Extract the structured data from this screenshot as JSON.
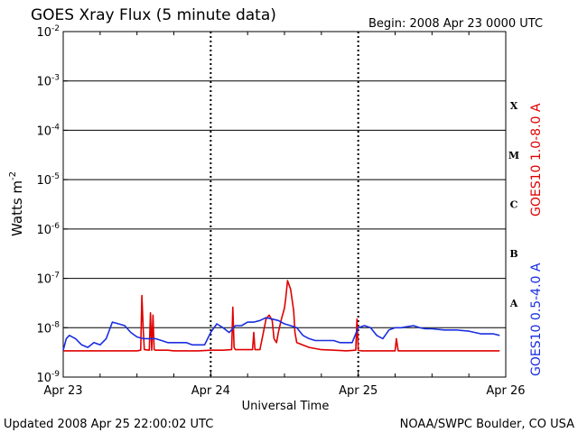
{
  "colors": {
    "long_channel": "#e00000",
    "short_channel": "#1a2ee0",
    "axis": "#000000",
    "background": "#ffffff"
  },
  "title": "GOES Xray Flux (5 minute data)",
  "begin_label": "Begin:  2008 Apr 23 0000 UTC",
  "footer_left": "Updated 2008 Apr 25 22:00:02 UTC",
  "footer_right": "NOAA/SWPC Boulder, CO USA",
  "chart_data": {
    "type": "line",
    "title": "GOES Xray Flux (5 minute data)",
    "xlabel": "Universal Time",
    "ylabel": "Watts m",
    "ylabel_superscript": "-2",
    "yscale": "log",
    "ylim": [
      1e-09,
      0.01
    ],
    "xlim": [
      0,
      72
    ],
    "x_unit": "hours since 2008 Apr 23 0000 UTC",
    "x_ticks": [
      {
        "x": 0,
        "label": "Apr 23"
      },
      {
        "x": 24,
        "label": "Apr 24"
      },
      {
        "x": 48,
        "label": "Apr 25"
      },
      {
        "x": 72,
        "label": "Apr 26"
      }
    ],
    "y_ticks": [
      {
        "exp": -9,
        "base": "10",
        "sup": "-9"
      },
      {
        "exp": -8,
        "base": "10",
        "sup": "-8"
      },
      {
        "exp": -7,
        "base": "10",
        "sup": "-7"
      },
      {
        "exp": -6,
        "base": "10",
        "sup": "-6"
      },
      {
        "exp": -5,
        "base": "10",
        "sup": "-5"
      },
      {
        "exp": -4,
        "base": "10",
        "sup": "-4"
      },
      {
        "exp": -3,
        "base": "10",
        "sup": "-3"
      },
      {
        "exp": -2,
        "base": "10",
        "sup": "-2"
      }
    ],
    "flare_classes": [
      {
        "label": "X",
        "exp": -4
      },
      {
        "label": "M",
        "exp": -5
      },
      {
        "label": "C",
        "exp": -6
      },
      {
        "label": "B",
        "exp": -7
      },
      {
        "label": "A",
        "exp": -8
      }
    ],
    "grid": "horizontal lines at each decade; dashed vertical lines at each day",
    "series": [
      {
        "name": "GOES10 1.0-8.0 A",
        "color": "#e00000",
        "x": [
          0,
          2,
          4,
          6,
          8,
          10,
          12,
          12.6,
          12.8,
          13,
          13.2,
          14,
          14.2,
          14.4,
          14.6,
          14.8,
          15,
          16,
          17,
          18,
          19,
          20,
          22,
          24,
          26,
          27.4,
          27.6,
          27.8,
          28,
          30,
          30.8,
          31,
          31.2,
          32,
          33,
          33.5,
          34,
          34.3,
          34.7,
          35,
          35.5,
          36,
          36.2,
          36.5,
          37,
          37.5,
          37.7,
          38,
          40,
          42,
          44,
          46,
          47.6,
          47.8,
          48,
          48.5,
          50,
          52,
          53.5,
          54,
          54.2,
          54.5,
          55,
          60,
          65,
          70,
          71
        ],
        "y": [
          3.4e-09,
          3.4e-09,
          3.4e-09,
          3.4e-09,
          3.4e-09,
          3.4e-09,
          3.4e-09,
          3.5e-09,
          4.5e-08,
          1e-08,
          3.6e-09,
          3.5e-09,
          2e-08,
          3.5e-09,
          1.8e-08,
          3.6e-09,
          3.5e-09,
          3.5e-09,
          3.5e-09,
          3.4e-09,
          3.4e-09,
          3.4e-09,
          3.4e-09,
          3.5e-09,
          3.5e-09,
          3.6e-09,
          2.6e-08,
          4e-09,
          3.6e-09,
          3.6e-09,
          3.6e-09,
          8e-09,
          3.6e-09,
          3.6e-09,
          1.5e-08,
          1.8e-08,
          1.4e-08,
          6e-09,
          5e-09,
          8e-09,
          1.5e-08,
          2.5e-08,
          4e-08,
          9e-08,
          6e-08,
          2.2e-08,
          8e-09,
          5e-09,
          4e-09,
          3.6e-09,
          3.5e-09,
          3.4e-09,
          3.5e-09,
          1.5e-08,
          3.5e-09,
          3.4e-09,
          3.4e-09,
          3.4e-09,
          3.4e-09,
          3.4e-09,
          6e-09,
          3.4e-09,
          3.4e-09,
          3.4e-09,
          3.4e-09,
          3.4e-09,
          3.4e-09
        ]
      },
      {
        "name": "GOES10 0.5-4.0 A",
        "color": "#1a2ee0",
        "x": [
          0,
          0.5,
          1,
          2,
          3,
          4,
          5,
          6,
          7,
          8,
          9,
          10,
          11,
          12,
          13,
          14,
          15,
          16,
          17,
          18,
          19,
          20,
          21,
          22,
          23,
          24,
          25,
          26,
          27,
          28,
          29,
          30,
          31,
          32,
          33,
          34,
          35,
          36,
          37,
          38,
          39,
          40,
          41,
          42,
          43,
          44,
          45,
          46,
          47,
          48,
          49,
          50,
          51,
          52,
          53,
          54,
          55,
          56,
          57,
          58,
          59,
          60,
          62,
          64,
          66,
          68,
          70,
          71
        ],
        "y": [
          3.5e-09,
          6e-09,
          7e-09,
          6e-09,
          4.5e-09,
          4e-09,
          5e-09,
          4.5e-09,
          6e-09,
          1.3e-08,
          1.2e-08,
          1.1e-08,
          8e-09,
          6.5e-09,
          6e-09,
          6e-09,
          6e-09,
          5.5e-09,
          5e-09,
          5e-09,
          5e-09,
          5e-09,
          4.5e-09,
          4.5e-09,
          4.5e-09,
          8e-09,
          1.2e-08,
          1e-08,
          8e-09,
          1.1e-08,
          1.1e-08,
          1.3e-08,
          1.3e-08,
          1.4e-08,
          1.6e-08,
          1.5e-08,
          1.4e-08,
          1.2e-08,
          1.1e-08,
          1e-08,
          7e-09,
          6e-09,
          5.5e-09,
          5.5e-09,
          5.5e-09,
          5.5e-09,
          5e-09,
          5e-09,
          5e-09,
          1e-08,
          1.1e-08,
          1e-08,
          7e-09,
          6e-09,
          9e-09,
          1e-08,
          1e-08,
          1.05e-08,
          1.1e-08,
          1e-08,
          9.5e-09,
          9.5e-09,
          9e-09,
          9e-09,
          8.5e-09,
          7.5e-09,
          7.5e-09,
          7e-09
        ]
      }
    ]
  }
}
